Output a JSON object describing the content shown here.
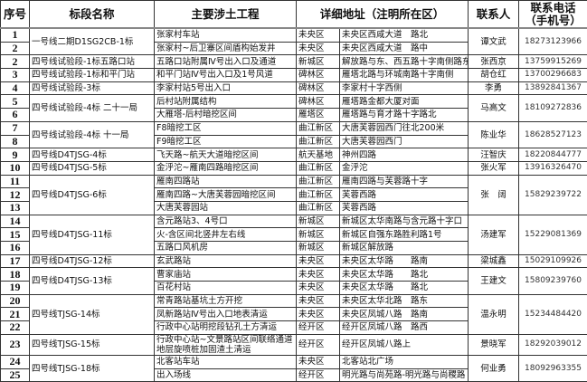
{
  "headers": [
    "序号",
    "标段名称",
    "主要涉土工程",
    "详细地址（注明所在区）",
    "联系人",
    "联系电话（手机号）"
  ],
  "groups": [
    {
      "section": "一号线二期D1SG2CB-1标",
      "contact": "谭文武",
      "phone": "18273123966",
      "items": [
        {
          "no": "1",
          "work": "张家村车站",
          "district": "未央区",
          "address": "未央区西咸大道　路北"
        },
        {
          "no": "2",
          "work": "张家村~后卫寨区间盾构始发井",
          "district": "未央区",
          "address": "未央区西咸大道　路中"
        }
      ]
    },
    {
      "section": "四号线试验段-1标五路口站",
      "contact": "张西京",
      "phone": "13759915269",
      "items": [
        {
          "no": "2",
          "work": "五路口站附属Ⅳ号出入口及通道",
          "district": "新城区",
          "address": "解放路与东、西五路十字南侧路东"
        }
      ]
    },
    {
      "section": "四号线试验段-1标和平门站",
      "contact": "胡仓红",
      "phone": "13700296683",
      "items": [
        {
          "no": "3",
          "work": "和平门站Ⅳ号出入口及1号风道",
          "district": "碑林区",
          "address": "雁塔北路与环城南路十字南侧"
        }
      ]
    },
    {
      "section": "四号线试验段-3标",
      "contact": "李勇",
      "phone": "13892841367",
      "items": [
        {
          "no": "4",
          "work": "李家村站5号出入口",
          "district": "碑林区",
          "address": "李家村十字西侧"
        }
      ]
    },
    {
      "section": "四号线试验段-4标 二十一局",
      "contact": "马高文",
      "phone": "18109272836",
      "items": [
        {
          "no": "5",
          "work": "后村站附属结构",
          "district": "碑林区",
          "address": "雁塔路金都大厦对面"
        },
        {
          "no": "6",
          "work": "大雁塔-后村暗挖区间",
          "district": "雁塔区",
          "address": "雁塔路与育才路十字路北"
        }
      ]
    },
    {
      "section": "四号线试验段-4标 十一局",
      "contact": "陈业华",
      "phone": "18628527123",
      "items": [
        {
          "no": "7",
          "work": "F8暗挖工区",
          "district": "曲江新区",
          "address": "大唐芙蓉园西门往北200米"
        },
        {
          "no": "8",
          "work": "F9暗挖工区",
          "district": "曲江新区",
          "address": "大唐芙蓉园西门"
        }
      ]
    },
    {
      "section": "四号线D4TJSG-4标",
      "contact": "汪智庆",
      "phone": "18220844777",
      "items": [
        {
          "no": "9",
          "work": "飞天路~航天大道暗挖区间",
          "district": "航天基地",
          "address": "神州四路"
        }
      ]
    },
    {
      "section": "四号线D4TJSG-5标",
      "contact": "张火军",
      "phone": "13916326470",
      "items": [
        {
          "no": "10",
          "work": "金泘沱~雁南四路暗挖区间",
          "district": "曲江新区",
          "address": "金泘沱"
        }
      ]
    },
    {
      "section": "四号线D4TJSG-6标",
      "contact": "张　阔",
      "phone": "15829239722",
      "items": [
        {
          "no": "11",
          "work": "雁南四路站",
          "district": "曲江新区",
          "address": "雁南四路与芙蓉路十字"
        },
        {
          "no": "12",
          "work": "雁南四路~大唐芙蓉园暗挖区间",
          "district": "曲江新区",
          "address": "芙蓉西路"
        },
        {
          "no": "13",
          "work": "大唐芙蓉园站",
          "district": "曲江新区",
          "address": "芙蓉西路"
        }
      ]
    },
    {
      "section": "四号线D4TJSG-11标",
      "contact": "汤建军",
      "phone": "15229081369",
      "items": [
        {
          "no": "14",
          "work": "含元路站3、4号口",
          "district": "新城区",
          "address": "新城区太华南路与含元路十字口"
        },
        {
          "no": "15",
          "work": "火-含区间北竖井左右线",
          "district": "新城区",
          "address": "新城区自强东路胜利路1号"
        },
        {
          "no": "16",
          "work": "五路口风机房",
          "district": "新城区",
          "address": "新城区解放路"
        }
      ]
    },
    {
      "section": "四号线D4TJSG-12标",
      "contact": "梁城鑫",
      "phone": "15029109926",
      "items": [
        {
          "no": "17",
          "work": "玄武路站",
          "district": "未央区",
          "address": "未央区太华路　　路南"
        }
      ]
    },
    {
      "section": "四号线D4TJSG-13标",
      "contact": "王建文",
      "phone": "15809239760",
      "items": [
        {
          "no": "18",
          "work": "曹家庙站",
          "district": "未央区",
          "address": "未央区太华路　　路北"
        },
        {
          "no": "19",
          "work": "百花村站",
          "district": "未央区",
          "address": "未央区太华路　　路北"
        }
      ]
    },
    {
      "section": "四号线TJSG-14标",
      "contact": "温永明",
      "phone": "15234484420",
      "items": [
        {
          "no": "20",
          "work": "常青路站基坑土方开挖",
          "district": "未央区",
          "address": "未央区太华北路　路东"
        },
        {
          "no": "21",
          "work": "凤新路站Ⅳ号出入口地表清运",
          "district": "未央区",
          "address": "未央区凤城八路　路南"
        },
        {
          "no": "22",
          "work": "行政中心站明挖段钻孔土方清运",
          "district": "经开区",
          "address": "经开区凤城八路　路西"
        }
      ]
    },
    {
      "section": "四号线TJSG-15标",
      "contact": "景晓军",
      "phone": "18292039012",
      "items": [
        {
          "no": "23",
          "work": "行政中心站~文景路站区间联络通道地层旋喷桩加固渣土清运",
          "district": "经开区",
          "address": "经开区凤城八路上",
          "wrap": true
        }
      ]
    },
    {
      "section": "四号线TJSG-18标",
      "contact": "何业勇",
      "phone": "18092963355",
      "items": [
        {
          "no": "24",
          "work": "北客站车站",
          "district": "未央区",
          "address": "北客站北广场"
        },
        {
          "no": "25",
          "work": "出入场线",
          "district": "经开区",
          "address": "明光路与尚苑路-明光路与尚稷路"
        }
      ]
    }
  ]
}
